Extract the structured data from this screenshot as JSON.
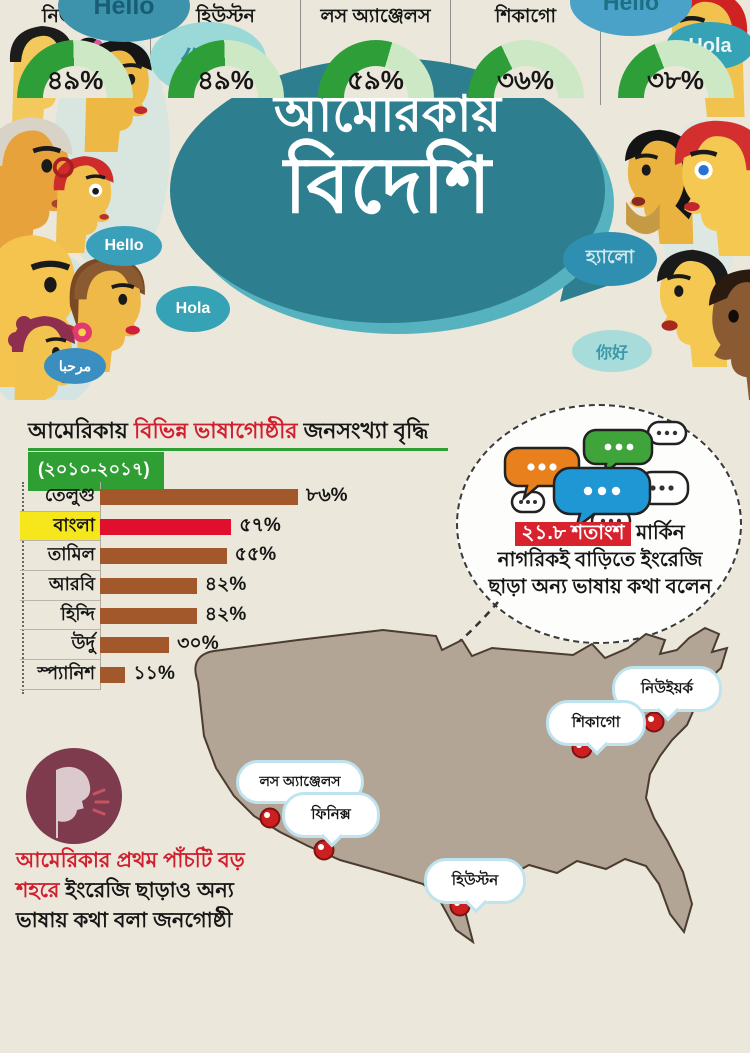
{
  "palette": {
    "background": "#ebe7da",
    "teal_bubble": "#2d7e8e",
    "accent_red": "#d01f2f",
    "accent_green": "#2f9e33",
    "bar_brown": "#a3582b",
    "bar_highlight_red": "#e00f2e",
    "label_highlight_yellow": "#f6e71c",
    "gauge_green": "#2e9e38",
    "gauge_light_green": "#cde8c4",
    "map_fill": "#b3a596",
    "pin_red": "#cc1f1f"
  },
  "hero": {
    "title_line1": "আমেরিকায়",
    "title_line2": "বিদেশি",
    "bubbles": [
      {
        "text": "Hello"
      },
      {
        "text": "你好"
      },
      {
        "text": "Hello"
      },
      {
        "text": "Hola"
      },
      {
        "text": "হ্যালো"
      },
      {
        "text": "你好"
      },
      {
        "text": "Hello"
      },
      {
        "text": "Hola"
      },
      {
        "text": "مرحبا"
      }
    ]
  },
  "growth_section": {
    "heading_black1": "আমেরিকায় ",
    "heading_red": "বিভিন্ন ভাষাগোষ্ঠীর",
    "heading_black2": " জনসংখ্যা বৃদ্ধি",
    "period": "(২০১০-২০১৭)"
  },
  "callout": {
    "highlight": "২১.৮ শতাংশ",
    "rest": " মার্কিন নাগরিকই বাড়িতে ইংরেজি ছাড়া অন্য ভাষায় কথা বলেন"
  },
  "map": {
    "cities": [
      {
        "name": "নিউইয়র্ক"
      },
      {
        "name": "শিকাগো"
      },
      {
        "name": "লস অ্যাঞ্জেলস"
      },
      {
        "name": "ফিনিক্স"
      },
      {
        "name": "হিউস্টন"
      }
    ]
  },
  "note": {
    "red_part": "আমেরিকার প্রথম পাঁচটি বড় শহরে ",
    "black_part": "ইংরেজি ছাড়াও অন্য ভাষায় কথা বলা জনগোষ্ঠী"
  },
  "chart_data": [
    {
      "type": "bar",
      "title": "আমেরিকায় বিভিন্ন ভাষাগোষ্ঠীর জনসংখ্যা বৃদ্ধি (২০১০-২০১৭)",
      "categories": [
        "তেলুগু",
        "বাংলা",
        "তামিল",
        "আরবি",
        "হিন্দি",
        "উর্দু",
        "স্প্যানিশ"
      ],
      "values": [
        86,
        57,
        55,
        42,
        42,
        30,
        11
      ],
      "value_labels": [
        "৮৬%",
        "৫৭%",
        "৫৫%",
        "৪২%",
        "৪২%",
        "৩০%",
        "১১%"
      ],
      "xlabel": "",
      "ylabel": "",
      "xlim": [
        0,
        86
      ],
      "orientation": "horizontal",
      "grid": false,
      "bar_color": "#a3582b",
      "highlight": {
        "index": 1,
        "bar_color": "#e00f2e",
        "label_bg": "#f6e71c"
      }
    },
    {
      "type": "gauge",
      "title": "আমেরিকার প্রথম পাঁচটি বড় শহরে ইংরেজি ছাড়াও অন্য ভাষায় কথা বলা জনগোষ্ঠী",
      "categories": [
        "নিউইয়র্ক",
        "হিউস্টন",
        "লস অ্যাঞ্জেলস",
        "শিকাগো",
        "ফিনিক্স"
      ],
      "values": [
        49,
        49,
        59,
        36,
        38
      ],
      "value_labels": [
        "৪৯%",
        "৪৯%",
        "৫৯%",
        "৩৬%",
        "৩৮%"
      ],
      "range": [
        0,
        100
      ],
      "color_filled": "#2e9e38",
      "color_empty": "#cde8c4"
    }
  ]
}
